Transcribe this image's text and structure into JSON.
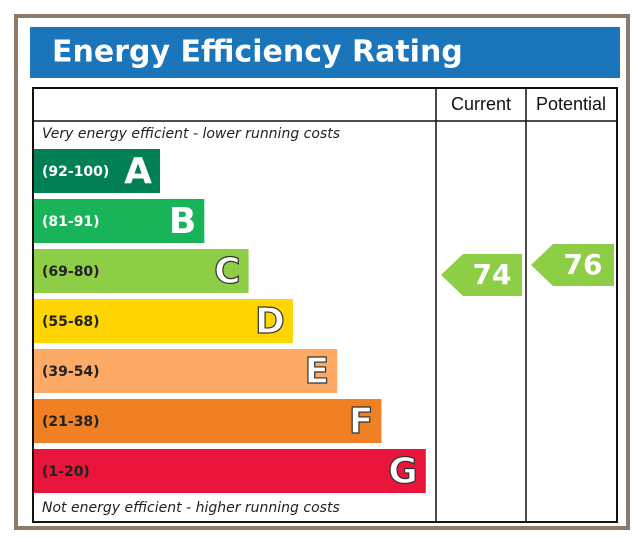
{
  "header": {
    "title": "Energy Efficiency Rating"
  },
  "columns": [
    "Current",
    "Potential"
  ],
  "top_note": "Very energy efficient - lower running costs",
  "bottom_note": "Not energy efficient - higher running costs",
  "bands": [
    {
      "range": "(92-100)",
      "letter": "A",
      "color": "#008054"
    },
    {
      "range": "(81-91)",
      "letter": "B",
      "color": "#19b459"
    },
    {
      "range": "(69-80)",
      "letter": "C",
      "color": "#8dce46"
    },
    {
      "range": "(55-68)",
      "letter": "D",
      "color": "#ffd500"
    },
    {
      "range": "(39-54)",
      "letter": "E",
      "color": "#fcaa65"
    },
    {
      "range": "(21-38)",
      "letter": "F",
      "color": "#ef8023"
    },
    {
      "range": "(1-20)",
      "letter": "G",
      "color": "#e9153b"
    }
  ],
  "ratings": {
    "current": "74",
    "potential": "76"
  }
}
